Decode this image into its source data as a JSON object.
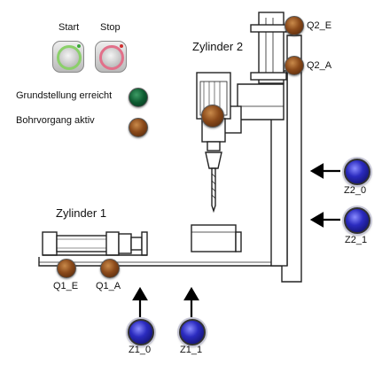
{
  "controls": {
    "start_label": "Start",
    "stop_label": "Stop"
  },
  "indicators": {
    "home_position_label": "Grundstellung erreicht",
    "drilling_active_label": "Bohrvorgang aktiv"
  },
  "cylinders": {
    "cylinder1_label": "Zylinder 1",
    "cylinder2_label": "Zylinder 2"
  },
  "outputs": {
    "q1_e": "Q1_E",
    "q1_a": "Q1_A",
    "q2_e": "Q2_E",
    "q2_a": "Q2_A"
  },
  "sensors": {
    "z1_0": "Z1_0",
    "z1_1": "Z1_1",
    "z2_0": "Z2_0",
    "z2_1": "Z2_1"
  },
  "colors": {
    "lamp_off": "#8b4a1a",
    "lamp_on": "#0d5a30",
    "sensor": "#2b2bbf"
  }
}
